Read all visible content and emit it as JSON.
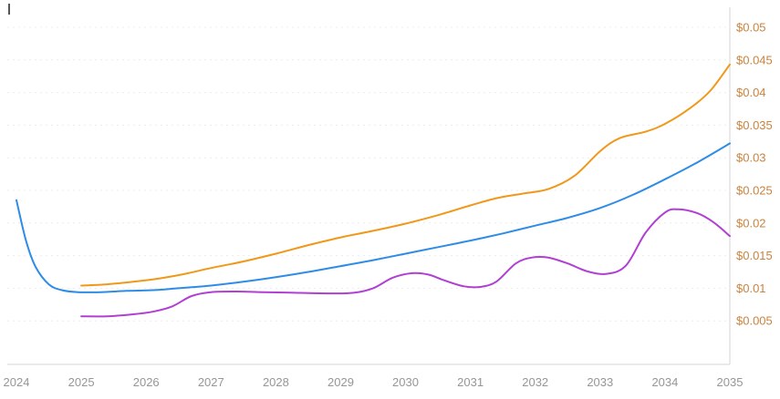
{
  "chart_data": {
    "type": "line",
    "title": "",
    "xlabel": "",
    "ylabel": "",
    "xlim": [
      2024,
      2035
    ],
    "ylim": [
      0,
      0.05
    ],
    "grid": "horizontal-dashed",
    "legend_position": "none",
    "y_axis_side": "right",
    "x_tick_values": [
      2024,
      2025,
      2026,
      2027,
      2028,
      2029,
      2030,
      2031,
      2032,
      2033,
      2034,
      2035
    ],
    "x_tick_labels": [
      "2024",
      "2025",
      "2026",
      "2027",
      "2028",
      "2029",
      "2030",
      "2031",
      "2032",
      "2033",
      "2034",
      "2035"
    ],
    "y_tick_values": [
      0.005,
      0.01,
      0.015,
      0.02,
      0.025,
      0.03,
      0.035,
      0.04,
      0.045,
      0.05
    ],
    "y_tick_labels": [
      "$0.005",
      "$0.01",
      "$0.015",
      "$0.02",
      "$0.025",
      "$0.03",
      "$0.035",
      "$0.04",
      "$0.045",
      "$0.05"
    ],
    "colors": {
      "grid": "#ececec",
      "axis": "#d6d6d6",
      "y_tick_label": "#c9833e",
      "x_tick_label": "#969696",
      "corner_tick": "#55565a"
    },
    "series": [
      {
        "name": "series-blue",
        "color": "#2f8ce6",
        "points": [
          [
            2024.0,
            0.0235
          ],
          [
            2024.15,
            0.0172
          ],
          [
            2024.3,
            0.0132
          ],
          [
            2024.5,
            0.0106
          ],
          [
            2024.7,
            0.0097
          ],
          [
            2024.95,
            0.0094
          ],
          [
            2025.3,
            0.0094
          ],
          [
            2025.7,
            0.0096
          ],
          [
            2026.1,
            0.0097
          ],
          [
            2026.5,
            0.01
          ],
          [
            2027.0,
            0.0104
          ],
          [
            2027.5,
            0.011
          ],
          [
            2028.0,
            0.0117
          ],
          [
            2028.5,
            0.0125
          ],
          [
            2029.0,
            0.0134
          ],
          [
            2029.5,
            0.0143
          ],
          [
            2030.0,
            0.0153
          ],
          [
            2030.5,
            0.0163
          ],
          [
            2031.0,
            0.0173
          ],
          [
            2031.5,
            0.0184
          ],
          [
            2032.0,
            0.0196
          ],
          [
            2032.5,
            0.0208
          ],
          [
            2033.0,
            0.0223
          ],
          [
            2033.5,
            0.0243
          ],
          [
            2034.0,
            0.0267
          ],
          [
            2034.5,
            0.0293
          ],
          [
            2035.0,
            0.0322
          ]
        ]
      },
      {
        "name": "series-orange",
        "color": "#f09819",
        "points": [
          [
            2025.0,
            0.0104
          ],
          [
            2025.4,
            0.0106
          ],
          [
            2025.8,
            0.011
          ],
          [
            2026.2,
            0.0115
          ],
          [
            2026.6,
            0.0122
          ],
          [
            2027.0,
            0.0131
          ],
          [
            2027.5,
            0.0141
          ],
          [
            2028.0,
            0.0153
          ],
          [
            2028.5,
            0.0166
          ],
          [
            2029.0,
            0.0178
          ],
          [
            2029.5,
            0.0188
          ],
          [
            2030.0,
            0.0199
          ],
          [
            2030.5,
            0.0212
          ],
          [
            2031.0,
            0.0227
          ],
          [
            2031.4,
            0.0238
          ],
          [
            2031.8,
            0.0245
          ],
          [
            2032.2,
            0.0252
          ],
          [
            2032.6,
            0.0272
          ],
          [
            2033.0,
            0.031
          ],
          [
            2033.3,
            0.033
          ],
          [
            2033.7,
            0.034
          ],
          [
            2034.0,
            0.0352
          ],
          [
            2034.4,
            0.0377
          ],
          [
            2034.7,
            0.0403
          ],
          [
            2035.0,
            0.0443
          ]
        ]
      },
      {
        "name": "series-purple",
        "color": "#b13fd4",
        "points": [
          [
            2025.0,
            0.0057
          ],
          [
            2025.4,
            0.0057
          ],
          [
            2025.8,
            0.006
          ],
          [
            2026.1,
            0.0064
          ],
          [
            2026.4,
            0.0072
          ],
          [
            2026.7,
            0.0088
          ],
          [
            2027.0,
            0.0094
          ],
          [
            2027.4,
            0.0095
          ],
          [
            2027.8,
            0.0094
          ],
          [
            2028.3,
            0.0093
          ],
          [
            2028.8,
            0.0092
          ],
          [
            2029.2,
            0.0093
          ],
          [
            2029.5,
            0.01
          ],
          [
            2029.8,
            0.0116
          ],
          [
            2030.1,
            0.0123
          ],
          [
            2030.35,
            0.0121
          ],
          [
            2030.6,
            0.0112
          ],
          [
            2030.9,
            0.0103
          ],
          [
            2031.15,
            0.0102
          ],
          [
            2031.4,
            0.011
          ],
          [
            2031.7,
            0.0138
          ],
          [
            2031.95,
            0.0147
          ],
          [
            2032.2,
            0.0147
          ],
          [
            2032.5,
            0.0138
          ],
          [
            2032.8,
            0.0126
          ],
          [
            2033.1,
            0.0122
          ],
          [
            2033.4,
            0.0135
          ],
          [
            2033.7,
            0.0185
          ],
          [
            2034.0,
            0.0216
          ],
          [
            2034.2,
            0.0221
          ],
          [
            2034.5,
            0.0215
          ],
          [
            2034.75,
            0.0201
          ],
          [
            2035.0,
            0.018
          ]
        ]
      }
    ]
  }
}
